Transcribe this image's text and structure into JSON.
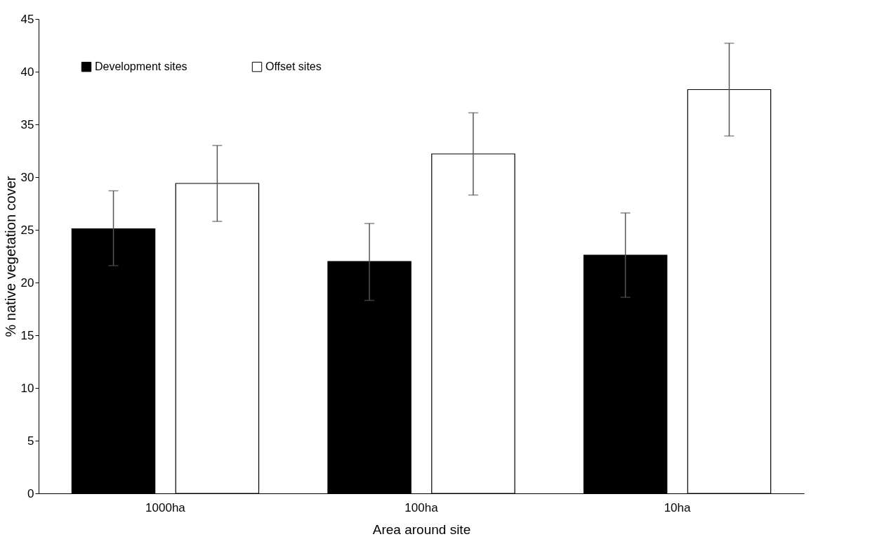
{
  "chart_data": {
    "type": "bar",
    "xlabel": "Area around site",
    "ylabel": "% native vegetation cover",
    "categories": [
      "1000ha",
      "100ha",
      "10ha"
    ],
    "series": [
      {
        "name": "Development sites",
        "color": "#000000",
        "values": [
          25.1,
          22.0,
          22.6
        ],
        "errors": [
          [
            21.6,
            28.7
          ],
          [
            18.3,
            25.6
          ],
          [
            18.6,
            26.6
          ]
        ]
      },
      {
        "name": "Offset sites",
        "color": "#ffffff",
        "values": [
          29.4,
          32.2,
          38.3
        ],
        "errors": [
          [
            25.8,
            33.0
          ],
          [
            28.3,
            36.1
          ],
          [
            33.9,
            42.7
          ]
        ]
      }
    ],
    "ylim": [
      0,
      45
    ],
    "yticks": [
      0,
      5,
      10,
      15,
      20,
      25,
      30,
      35,
      40,
      45
    ],
    "grid": false,
    "legend": "top left"
  }
}
